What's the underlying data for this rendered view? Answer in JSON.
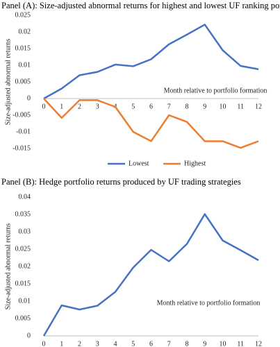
{
  "chart_data": [
    {
      "type": "line",
      "title": "Panel (A): Size-adjusted abnormal returns for highest and lowest UF ranking portfolio",
      "y_label": "Size-adjusted abnormal returns",
      "annotation": "Month relative to portfolio formation",
      "x": [
        0,
        1,
        2,
        3,
        4,
        5,
        6,
        7,
        8,
        9,
        10,
        11,
        12
      ],
      "xlim": [
        0,
        12
      ],
      "ylim": [
        -0.015,
        0.025
      ],
      "yticks": [
        -0.015,
        -0.01,
        -0.005,
        0,
        0.005,
        0.01,
        0.015,
        0.02,
        0.025
      ],
      "legend": "bottom",
      "series": [
        {
          "name": "Lowest",
          "color": "#4472c4",
          "values": [
            0,
            0.003,
            0.007,
            0.008,
            0.0102,
            0.0097,
            0.0118,
            0.0163,
            0.0192,
            0.0222,
            0.0145,
            0.0098,
            0.0088
          ]
        },
        {
          "name": "Highest",
          "color": "#ed7d31",
          "values": [
            0,
            -0.0058,
            -0.0005,
            -0.0005,
            -0.0025,
            -0.01,
            -0.0128,
            -0.005,
            -0.007,
            -0.0128,
            -0.0128,
            -0.0148,
            -0.0128
          ]
        }
      ]
    },
    {
      "type": "line",
      "title": "Panel (B): Hedge portfolio returns produced by UF trading strategies",
      "y_label": "Size-adjusted abnormal returns",
      "annotation": "Month relative to portfolio formation",
      "x": [
        0,
        1,
        2,
        3,
        4,
        5,
        6,
        7,
        8,
        9,
        10,
        11,
        12
      ],
      "xlim": [
        0,
        12
      ],
      "ylim": [
        0,
        0.04
      ],
      "yticks": [
        0,
        0.005,
        0.01,
        0.015,
        0.02,
        0.025,
        0.03,
        0.035,
        0.04
      ],
      "series": [
        {
          "color": "#4472c4",
          "values": [
            0,
            0.0088,
            0.0076,
            0.0087,
            0.0127,
            0.0197,
            0.0248,
            0.0215,
            0.0265,
            0.0351,
            0.0275,
            0.0247,
            0.0218
          ]
        }
      ]
    }
  ]
}
